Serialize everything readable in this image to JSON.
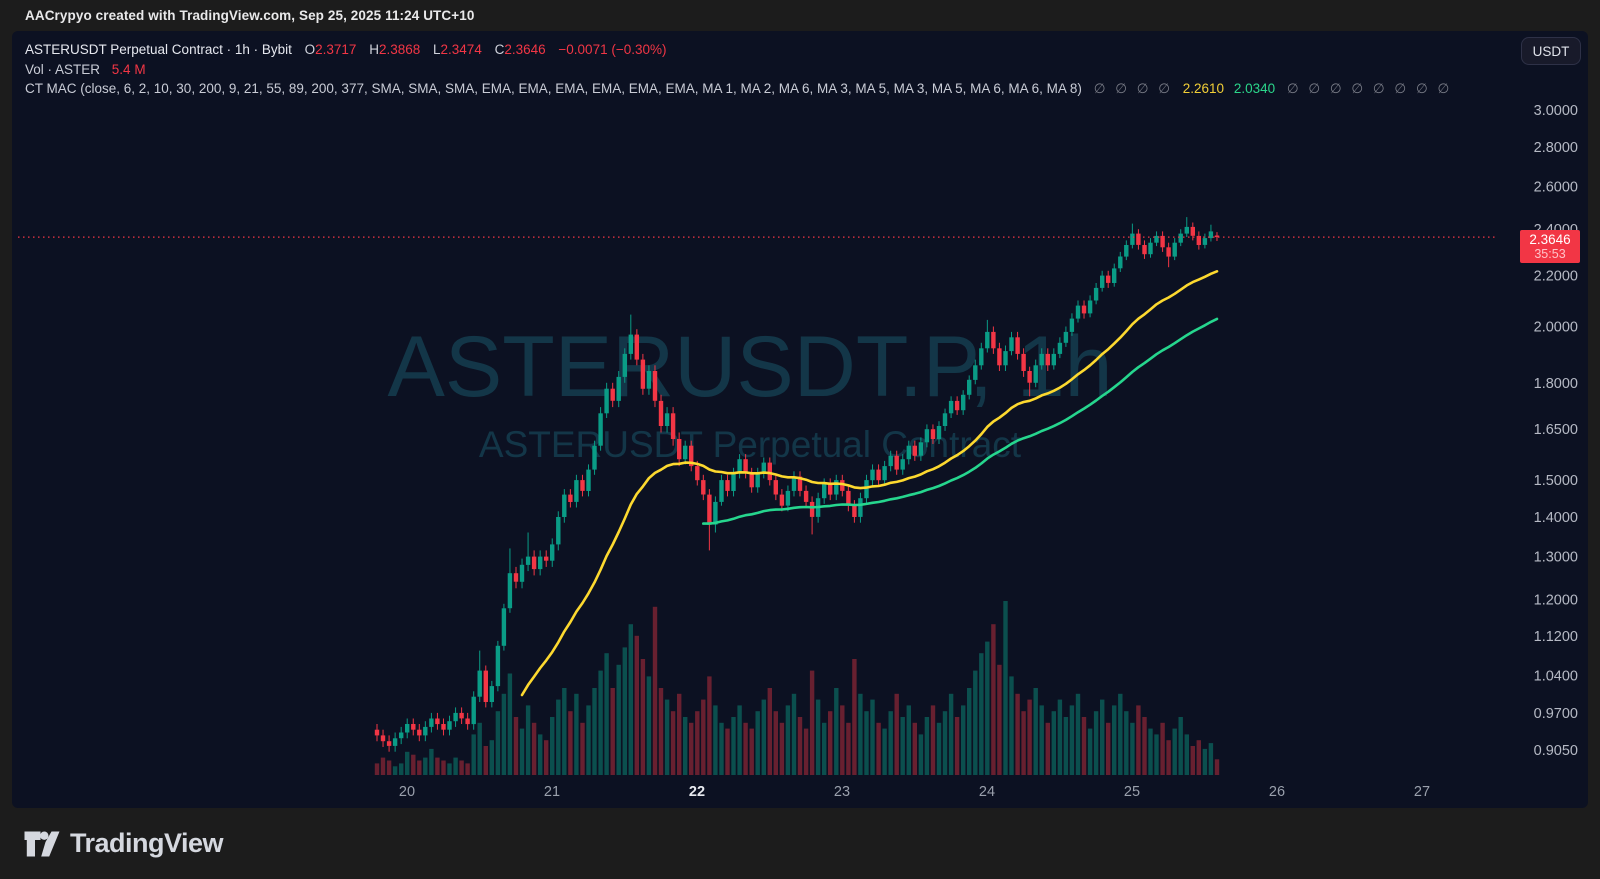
{
  "topbar": {
    "attribution": "AACrypyo created with TradingView.com, Sep 25, 2025 11:24 UTC+10"
  },
  "header": {
    "symbol_line": "ASTERUSDT Perpetual Contract · 1h · Bybit",
    "o_label": "O",
    "o_value": "2.3717",
    "h_label": "H",
    "h_value": "2.3868",
    "l_label": "L",
    "l_value": "2.3474",
    "c_label": "C",
    "c_value": "2.3646",
    "change": "−0.0071 (−0.30%)",
    "vol_label": "Vol · ASTER",
    "vol_value": "5.4 M",
    "indicator_name": "CT MAC (close, 6, 2, 10, 30, 200, 9, 21, 55, 89, 200, 377, SMA, SMA, SMA, EMA, EMA, EMA, EMA, EMA, EMA, MA 1, MA 2, MA 6, MA 3, MA 5, MA 3, MA 5, MA 6, MA 6, MA 8)",
    "indicator_empty_prefix": "∅ ∅ ∅ ∅",
    "indicator_ma_fast": "2.2610",
    "indicator_ma_slow": "2.0340",
    "indicator_empty_suffix": "∅ ∅ ∅ ∅ ∅ ∅ ∅ ∅"
  },
  "buttons": {
    "currency": "USDT"
  },
  "watermark": {
    "line1": "ASTERUSDT.P, 1h",
    "line2": "ASTERUSDT Perpetual Contract"
  },
  "badge": {
    "last_price": "2.3646",
    "countdown": "35:53"
  },
  "footer": {
    "logo_text": "TradingView"
  },
  "colors": {
    "panel_bg": "#0c1122",
    "frame_bg": "#1c1c1c",
    "up": "#0a9c86",
    "down": "#f23645",
    "vol_up": "rgba(10,156,134,0.45)",
    "vol_down": "rgba(242,54,69,0.40)",
    "ema_fast": "#fdd92f",
    "ema_slow": "#26d68e",
    "axis_text": "#b6bac5",
    "axis_text_strong": "#e8eaf0",
    "watermark": "rgba(32,116,134,0.38)",
    "last_price_line": "#f23645",
    "badge_bg": "#f23645"
  },
  "chart_data": {
    "type": "candlestick",
    "symbol": "ASTERUSDT.P",
    "exchange": "Bybit",
    "interval": "1h",
    "scale": "log",
    "grid": false,
    "price_ticks": [
      "3.0000",
      "2.8000",
      "2.6000",
      "2.4000",
      "2.2000",
      "2.0000",
      "1.8000",
      "1.6500",
      "1.5000",
      "1.4000",
      "1.3000",
      "1.2000",
      "1.1200",
      "1.0400",
      "0.9700",
      "0.9050"
    ],
    "time_ticks": [
      {
        "label": "20",
        "i": 5,
        "strong": false
      },
      {
        "label": "21",
        "i": 29,
        "strong": false
      },
      {
        "label": "22",
        "i": 53,
        "strong": true
      },
      {
        "label": "23",
        "i": 77,
        "strong": false
      },
      {
        "label": "24",
        "i": 101,
        "strong": false
      },
      {
        "label": "25",
        "i": 125,
        "strong": false
      },
      {
        "label": "26",
        "i": 149,
        "strong": false
      },
      {
        "label": "27",
        "i": 173,
        "strong": false
      }
    ],
    "last_price": 2.3646,
    "overlays": [
      {
        "name": "MA fast",
        "style": "ema",
        "period": 30,
        "current_value": 2.261,
        "color_key": "ema_fast",
        "start_index": 24
      },
      {
        "name": "MA slow",
        "style": "ema",
        "period": 60,
        "current_value": 2.034,
        "color_key": "ema_slow",
        "start_index": 54
      }
    ],
    "volume_unit": "M",
    "current_volume": 5.4,
    "candles_format": [
      "open",
      "high",
      "low",
      "close",
      "volume_m"
    ],
    "candles": [
      [
        0.94,
        0.95,
        0.92,
        0.93,
        4
      ],
      [
        0.93,
        0.94,
        0.91,
        0.92,
        6
      ],
      [
        0.92,
        0.93,
        0.902,
        0.912,
        5
      ],
      [
        0.912,
        0.935,
        0.902,
        0.925,
        3
      ],
      [
        0.925,
        0.945,
        0.915,
        0.935,
        4
      ],
      [
        0.935,
        0.96,
        0.925,
        0.95,
        8
      ],
      [
        0.95,
        0.96,
        0.93,
        0.94,
        7
      ],
      [
        0.94,
        0.95,
        0.92,
        0.93,
        5
      ],
      [
        0.93,
        0.955,
        0.92,
        0.945,
        6
      ],
      [
        0.945,
        0.97,
        0.935,
        0.96,
        9
      ],
      [
        0.96,
        0.97,
        0.94,
        0.95,
        6
      ],
      [
        0.95,
        0.96,
        0.93,
        0.94,
        5
      ],
      [
        0.94,
        0.965,
        0.93,
        0.955,
        4
      ],
      [
        0.955,
        0.98,
        0.945,
        0.97,
        6
      ],
      [
        0.97,
        0.98,
        0.95,
        0.96,
        5
      ],
      [
        0.96,
        0.97,
        0.94,
        0.95,
        4
      ],
      [
        0.95,
        1.01,
        0.94,
        1.0,
        14
      ],
      [
        1.0,
        1.09,
        0.99,
        1.05,
        18
      ],
      [
        1.05,
        1.06,
        0.98,
        0.99,
        10
      ],
      [
        0.99,
        1.03,
        0.98,
        1.02,
        12
      ],
      [
        1.02,
        1.11,
        1.01,
        1.1,
        22
      ],
      [
        1.1,
        1.19,
        1.09,
        1.18,
        28
      ],
      [
        1.18,
        1.32,
        1.17,
        1.26,
        35
      ],
      [
        1.26,
        1.275,
        1.225,
        1.24,
        20
      ],
      [
        1.24,
        1.295,
        1.225,
        1.28,
        16
      ],
      [
        1.28,
        1.36,
        1.265,
        1.3,
        24
      ],
      [
        1.3,
        1.315,
        1.255,
        1.27,
        18
      ],
      [
        1.27,
        1.315,
        1.255,
        1.3,
        14
      ],
      [
        1.3,
        1.315,
        1.275,
        1.29,
        12
      ],
      [
        1.29,
        1.345,
        1.275,
        1.33,
        20
      ],
      [
        1.33,
        1.415,
        1.315,
        1.4,
        26
      ],
      [
        1.4,
        1.475,
        1.385,
        1.46,
        30
      ],
      [
        1.46,
        1.475,
        1.425,
        1.44,
        22
      ],
      [
        1.44,
        1.515,
        1.425,
        1.5,
        28
      ],
      [
        1.5,
        1.515,
        1.455,
        1.47,
        18
      ],
      [
        1.47,
        1.545,
        1.455,
        1.53,
        24
      ],
      [
        1.53,
        1.615,
        1.515,
        1.6,
        30
      ],
      [
        1.6,
        1.72,
        1.585,
        1.7,
        36
      ],
      [
        1.7,
        1.8,
        1.685,
        1.78,
        42
      ],
      [
        1.78,
        1.8,
        1.72,
        1.74,
        30
      ],
      [
        1.74,
        1.84,
        1.72,
        1.82,
        38
      ],
      [
        1.82,
        1.92,
        1.8,
        1.9,
        44
      ],
      [
        1.9,
        2.045,
        1.88,
        1.97,
        52
      ],
      [
        1.97,
        1.99,
        1.86,
        1.88,
        48
      ],
      [
        1.88,
        1.9,
        1.76,
        1.78,
        40
      ],
      [
        1.78,
        1.86,
        1.76,
        1.84,
        34
      ],
      [
        1.84,
        1.86,
        1.72,
        1.74,
        58
      ],
      [
        1.74,
        1.76,
        1.64,
        1.66,
        30
      ],
      [
        1.66,
        1.72,
        1.64,
        1.7,
        26
      ],
      [
        1.7,
        1.72,
        1.6,
        1.62,
        22
      ],
      [
        1.62,
        1.64,
        1.54,
        1.56,
        28
      ],
      [
        1.56,
        1.615,
        1.545,
        1.6,
        20
      ],
      [
        1.6,
        1.615,
        1.525,
        1.54,
        18
      ],
      [
        1.54,
        1.555,
        1.485,
        1.5,
        22
      ],
      [
        1.5,
        1.515,
        1.445,
        1.46,
        26
      ],
      [
        1.46,
        1.475,
        1.315,
        1.38,
        34
      ],
      [
        1.38,
        1.455,
        1.36,
        1.44,
        24
      ],
      [
        1.44,
        1.515,
        1.43,
        1.5,
        18
      ],
      [
        1.5,
        1.515,
        1.455,
        1.47,
        16
      ],
      [
        1.47,
        1.535,
        1.455,
        1.52,
        20
      ],
      [
        1.52,
        1.575,
        1.505,
        1.56,
        24
      ],
      [
        1.56,
        1.575,
        1.505,
        1.52,
        18
      ],
      [
        1.52,
        1.535,
        1.465,
        1.48,
        16
      ],
      [
        1.48,
        1.535,
        1.465,
        1.52,
        22
      ],
      [
        1.52,
        1.565,
        1.505,
        1.55,
        26
      ],
      [
        1.55,
        1.565,
        1.485,
        1.5,
        30
      ],
      [
        1.5,
        1.515,
        1.445,
        1.46,
        22
      ],
      [
        1.46,
        1.475,
        1.415,
        1.43,
        18
      ],
      [
        1.43,
        1.485,
        1.415,
        1.47,
        24
      ],
      [
        1.47,
        1.525,
        1.455,
        1.51,
        28
      ],
      [
        1.51,
        1.525,
        1.455,
        1.47,
        20
      ],
      [
        1.47,
        1.485,
        1.425,
        1.44,
        16
      ],
      [
        1.44,
        1.455,
        1.355,
        1.4,
        36
      ],
      [
        1.4,
        1.465,
        1.385,
        1.45,
        26
      ],
      [
        1.45,
        1.505,
        1.435,
        1.49,
        18
      ],
      [
        1.49,
        1.505,
        1.445,
        1.46,
        22
      ],
      [
        1.46,
        1.515,
        1.445,
        1.5,
        30
      ],
      [
        1.5,
        1.515,
        1.455,
        1.47,
        24
      ],
      [
        1.47,
        1.485,
        1.415,
        1.43,
        18
      ],
      [
        1.43,
        1.445,
        1.385,
        1.4,
        40
      ],
      [
        1.4,
        1.465,
        1.385,
        1.45,
        28
      ],
      [
        1.45,
        1.515,
        1.435,
        1.5,
        22
      ],
      [
        1.5,
        1.545,
        1.485,
        1.53,
        26
      ],
      [
        1.53,
        1.545,
        1.485,
        1.5,
        18
      ],
      [
        1.5,
        1.555,
        1.485,
        1.54,
        16
      ],
      [
        1.54,
        1.585,
        1.525,
        1.57,
        22
      ],
      [
        1.57,
        1.585,
        1.515,
        1.53,
        28
      ],
      [
        1.53,
        1.575,
        1.515,
        1.56,
        20
      ],
      [
        1.56,
        1.615,
        1.545,
        1.6,
        24
      ],
      [
        1.6,
        1.615,
        1.555,
        1.57,
        18
      ],
      [
        1.57,
        1.625,
        1.555,
        1.61,
        14
      ],
      [
        1.61,
        1.665,
        1.595,
        1.65,
        20
      ],
      [
        1.65,
        1.665,
        1.605,
        1.62,
        24
      ],
      [
        1.62,
        1.675,
        1.605,
        1.66,
        18
      ],
      [
        1.66,
        1.715,
        1.645,
        1.7,
        22
      ],
      [
        1.7,
        1.755,
        1.685,
        1.74,
        28
      ],
      [
        1.74,
        1.755,
        1.695,
        1.71,
        20
      ],
      [
        1.71,
        1.775,
        1.695,
        1.76,
        24
      ],
      [
        1.76,
        1.825,
        1.745,
        1.81,
        30
      ],
      [
        1.81,
        1.88,
        1.795,
        1.86,
        36
      ],
      [
        1.86,
        1.94,
        1.845,
        1.92,
        42
      ],
      [
        1.92,
        2.025,
        1.905,
        1.98,
        46
      ],
      [
        1.98,
        2.0,
        1.9,
        1.92,
        52
      ],
      [
        1.92,
        1.94,
        1.84,
        1.86,
        38
      ],
      [
        1.86,
        1.93,
        1.84,
        1.91,
        60
      ],
      [
        1.91,
        1.98,
        1.895,
        1.96,
        34
      ],
      [
        1.96,
        1.98,
        1.88,
        1.9,
        28
      ],
      [
        1.9,
        1.92,
        1.82,
        1.84,
        22
      ],
      [
        1.84,
        1.855,
        1.755,
        1.8,
        26
      ],
      [
        1.8,
        1.88,
        1.785,
        1.86,
        30
      ],
      [
        1.86,
        1.92,
        1.845,
        1.9,
        24
      ],
      [
        1.9,
        1.92,
        1.84,
        1.86,
        18
      ],
      [
        1.86,
        1.92,
        1.845,
        1.9,
        22
      ],
      [
        1.9,
        1.96,
        1.885,
        1.94,
        26
      ],
      [
        1.94,
        2.0,
        1.925,
        1.98,
        20
      ],
      [
        1.98,
        2.05,
        1.965,
        2.03,
        24
      ],
      [
        2.03,
        2.1,
        2.015,
        2.08,
        28
      ],
      [
        2.08,
        2.1,
        2.03,
        2.05,
        20
      ],
      [
        2.05,
        2.12,
        2.035,
        2.1,
        16
      ],
      [
        2.1,
        2.17,
        2.085,
        2.15,
        22
      ],
      [
        2.15,
        2.22,
        2.135,
        2.2,
        26
      ],
      [
        2.2,
        2.22,
        2.15,
        2.17,
        18
      ],
      [
        2.17,
        2.25,
        2.155,
        2.23,
        24
      ],
      [
        2.23,
        2.3,
        2.215,
        2.28,
        28
      ],
      [
        2.28,
        2.35,
        2.265,
        2.33,
        22
      ],
      [
        2.33,
        2.425,
        2.315,
        2.38,
        18
      ],
      [
        2.38,
        2.4,
        2.31,
        2.33,
        24
      ],
      [
        2.33,
        2.35,
        2.27,
        2.29,
        20
      ],
      [
        2.29,
        2.36,
        2.275,
        2.34,
        16
      ],
      [
        2.34,
        2.39,
        2.325,
        2.37,
        14
      ],
      [
        2.37,
        2.39,
        2.3,
        2.32,
        18
      ],
      [
        2.32,
        2.34,
        2.235,
        2.28,
        12
      ],
      [
        2.28,
        2.36,
        2.265,
        2.34,
        16
      ],
      [
        2.34,
        2.4,
        2.325,
        2.38,
        20
      ],
      [
        2.38,
        2.455,
        2.365,
        2.41,
        14
      ],
      [
        2.41,
        2.43,
        2.35,
        2.37,
        10
      ],
      [
        2.37,
        2.39,
        2.31,
        2.33,
        12
      ],
      [
        2.33,
        2.38,
        2.315,
        2.36,
        9
      ],
      [
        2.36,
        2.42,
        2.345,
        2.39,
        11
      ],
      [
        2.3717,
        2.3868,
        2.3474,
        2.3646,
        5.4
      ]
    ]
  }
}
